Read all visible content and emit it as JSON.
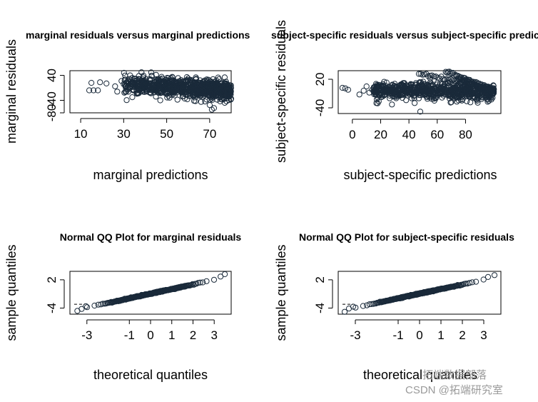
{
  "chart_data": [
    {
      "type": "scatter",
      "title": "marginal residuals versus marginal predictions",
      "xlabel": "marginal predictions",
      "ylabel": "marginal residuals",
      "xlim": [
        5,
        80
      ],
      "ylim": [
        -80,
        55
      ],
      "xticks": [
        "10",
        "30",
        "50",
        "70"
      ],
      "yticks": [
        "-80",
        "-40",
        "40"
      ],
      "point_count_approx": 1200,
      "points": [
        [
          14,
          -8
        ],
        [
          16,
          -8
        ],
        [
          18,
          -8
        ],
        [
          15,
          16
        ],
        [
          19,
          18
        ],
        [
          22,
          14
        ],
        [
          26,
          5
        ],
        [
          27,
          -12
        ],
        [
          29,
          22
        ],
        [
          30,
          12
        ],
        [
          32,
          -5
        ],
        [
          33,
          40
        ],
        [
          34,
          -30
        ],
        [
          37,
          15
        ],
        [
          39,
          -12
        ],
        [
          40,
          22
        ],
        [
          42,
          -15
        ],
        [
          44,
          10
        ],
        [
          45,
          -28
        ],
        [
          46,
          28
        ],
        [
          47,
          -40
        ],
        [
          48,
          18
        ],
        [
          50,
          -20
        ],
        [
          52,
          25
        ],
        [
          54,
          -10
        ],
        [
          55,
          -38
        ],
        [
          57,
          14
        ],
        [
          59,
          -22
        ],
        [
          60,
          30
        ],
        [
          62,
          -25
        ],
        [
          64,
          8
        ],
        [
          66,
          -45
        ],
        [
          67,
          20
        ],
        [
          69,
          -15
        ],
        [
          70,
          -55
        ],
        [
          71,
          -70
        ],
        [
          72,
          -65
        ],
        [
          73,
          10
        ],
        [
          75,
          -30
        ],
        [
          77,
          -48
        ],
        [
          78,
          5
        ],
        [
          79,
          -25
        ],
        [
          80,
          -35
        ]
      ],
      "trend": {
        "x": [
          30,
          80
        ],
        "y": [
          10,
          -8
        ]
      }
    },
    {
      "type": "scatter",
      "title": "subject-specific residuals versus subject-specific predictions",
      "xlabel": "subject-specific predictions",
      "ylabel": "subject-specific residuals",
      "xlim": [
        -10,
        105
      ],
      "ylim": [
        -52,
        38
      ],
      "xticks": [
        "0",
        "20",
        "40",
        "60",
        "80"
      ],
      "yticks": [
        "-40",
        "20"
      ],
      "point_count_approx": 1200,
      "points": [
        [
          -7,
          2
        ],
        [
          -5,
          1
        ],
        [
          -3,
          -2
        ],
        [
          5,
          -12
        ],
        [
          8,
          -4
        ],
        [
          10,
          5
        ],
        [
          12,
          -8
        ],
        [
          14,
          -2
        ],
        [
          17,
          -30
        ],
        [
          20,
          4
        ],
        [
          23,
          -6
        ],
        [
          25,
          3
        ],
        [
          26,
          -10
        ],
        [
          28,
          -33
        ],
        [
          30,
          6
        ],
        [
          33,
          -4
        ],
        [
          35,
          8
        ],
        [
          38,
          -24
        ],
        [
          40,
          4
        ],
        [
          42,
          -8
        ],
        [
          44,
          -30
        ],
        [
          45,
          12
        ],
        [
          47,
          -20
        ],
        [
          48,
          -48
        ],
        [
          50,
          15
        ],
        [
          52,
          -12
        ],
        [
          55,
          22
        ],
        [
          58,
          -25
        ],
        [
          62,
          -8
        ],
        [
          65,
          18
        ],
        [
          68,
          -15
        ],
        [
          70,
          -28
        ],
        [
          72,
          10
        ],
        [
          75,
          -12
        ],
        [
          78,
          -22
        ],
        [
          80,
          -8
        ],
        [
          83,
          -15
        ],
        [
          86,
          -18
        ],
        [
          90,
          -10
        ],
        [
          95,
          -4
        ],
        [
          100,
          -1
        ]
      ],
      "bands": [
        {
          "x": [
            47,
            100
          ],
          "y": [
            33,
            -2
          ]
        },
        {
          "x": [
            66,
            100
          ],
          "y": [
            36,
            -1
          ]
        },
        {
          "x": [
            75,
            100
          ],
          "y": [
            22,
            -6
          ]
        }
      ]
    },
    {
      "type": "scatter",
      "title": "Normal QQ Plot for marginal residuals",
      "xlabel": "theoretical quantiles",
      "ylabel": "sample quantiles",
      "xlim": [
        -3.8,
        3.8
      ],
      "ylim": [
        -5.3,
        3.8
      ],
      "xticks": [
        "-3",
        "-1",
        "0",
        "1",
        "2",
        "3"
      ],
      "yticks": [
        "-4",
        "2"
      ],
      "qq": {
        "points_count": 360,
        "x_range": [
          -3.4,
          3.5
        ],
        "tail_points": [
          [
            -3.45,
            -4.6
          ],
          [
            -3.25,
            -4.2
          ],
          [
            -3.05,
            -3.6
          ],
          [
            3.3,
            2.7
          ],
          [
            3.5,
            3.2
          ]
        ]
      },
      "reference_line": {
        "x": [
          -3.6,
          -3.1
        ],
        "y": [
          -3.2,
          -3.2
        ]
      }
    },
    {
      "type": "scatter",
      "title": "Normal QQ Plot for subject-specific residuals",
      "xlabel": "theoretical quantiles",
      "ylabel": "sample quantiles",
      "xlim": [
        -3.8,
        3.8
      ],
      "ylim": [
        -5.3,
        3.8
      ],
      "xticks": [
        "-3",
        "-1",
        "0",
        "1",
        "2",
        "3"
      ],
      "yticks": [
        "-4",
        "2"
      ],
      "qq": {
        "points_count": 360,
        "x_range": [
          -3.4,
          3.5
        ],
        "tail_points": [
          [
            -3.5,
            -4.8
          ],
          [
            -3.3,
            -4.1
          ],
          [
            -3.1,
            -3.7
          ],
          [
            3.2,
            2.6
          ],
          [
            3.5,
            3.0
          ]
        ]
      },
      "reference_line": {
        "x": [
          -3.6,
          -3.1
        ],
        "y": [
          -3.2,
          -3.2
        ]
      }
    }
  ],
  "watermark": "CSDN @拓端研究室",
  "watermark_secondary": "拓端数据部落",
  "colors": {
    "ink": "#000000",
    "points": "#1a2a3a",
    "watermark": "#9a9a9a"
  }
}
